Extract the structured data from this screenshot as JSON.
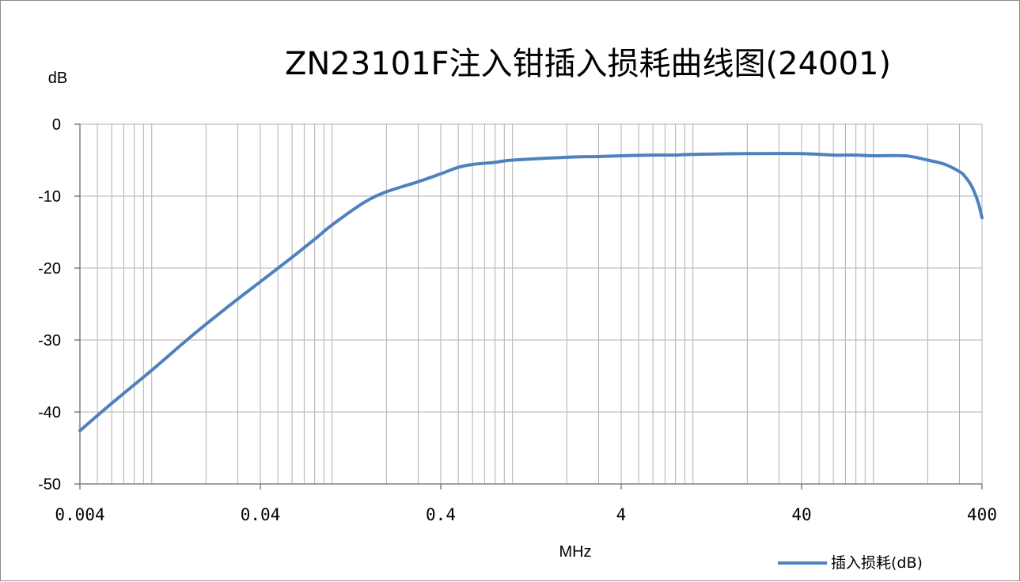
{
  "chart_data": {
    "type": "line",
    "title": "ZN23101F注入钳插入损耗曲线图(24001)",
    "xlabel": "MHz",
    "ylabel": "dB",
    "xscale": "log",
    "xlim": [
      0.004,
      400
    ],
    "ylim": [
      -50,
      0
    ],
    "x_ticks": [
      0.004,
      0.04,
      0.4,
      4,
      40,
      400
    ],
    "x_tick_labels": [
      "0.004",
      "0.04",
      "0.4",
      "4",
      "40",
      "400"
    ],
    "y_ticks": [
      0,
      -10,
      -20,
      -30,
      -40,
      -50
    ],
    "y_tick_labels": [
      "0",
      "-10",
      "-20",
      "-30",
      "-40",
      "-50"
    ],
    "grid": true,
    "legend_position": "bottom-right",
    "colors": {
      "series": "#4f81bd",
      "grid": "#b0b0b0",
      "axis": "#808080",
      "frame": "#8c8c8c"
    },
    "series": [
      {
        "name": "插入损耗(dB)",
        "x": [
          0.004,
          0.006,
          0.01,
          0.015,
          0.02,
          0.03,
          0.04,
          0.06,
          0.08,
          0.1,
          0.15,
          0.2,
          0.3,
          0.4,
          0.5,
          0.6,
          0.8,
          1,
          2,
          3,
          4,
          6,
          8,
          10,
          20,
          40,
          60,
          80,
          100,
          150,
          200,
          250,
          300,
          320,
          350,
          380,
          400
        ],
        "y": [
          -42.6,
          -38.8,
          -34.2,
          -30.4,
          -27.8,
          -24.3,
          -21.9,
          -18.5,
          -16.0,
          -14.0,
          -10.9,
          -9.4,
          -8.0,
          -6.9,
          -6.0,
          -5.6,
          -5.3,
          -5.0,
          -4.6,
          -4.5,
          -4.4,
          -4.3,
          -4.3,
          -4.2,
          -4.1,
          -4.1,
          -4.3,
          -4.3,
          -4.4,
          -4.4,
          -5.0,
          -5.6,
          -6.6,
          -7.2,
          -8.6,
          -10.8,
          -13.0
        ]
      }
    ]
  }
}
